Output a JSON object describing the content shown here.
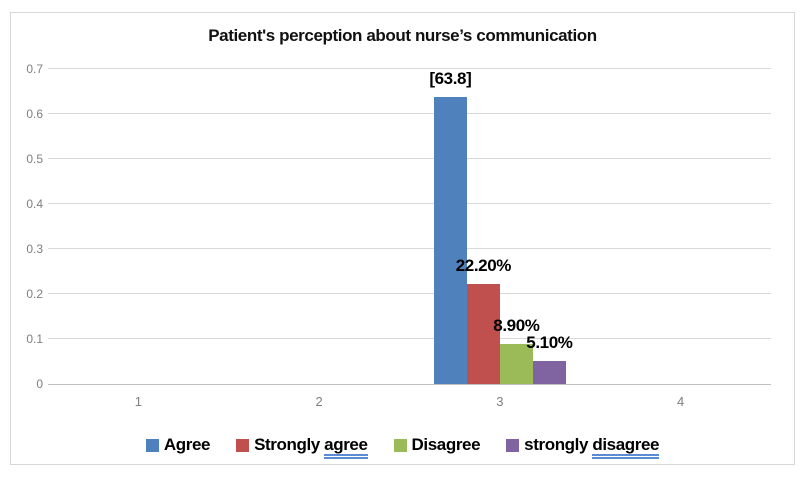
{
  "chart_data": {
    "type": "bar",
    "title": "Patient's perception about nurse’s communication",
    "categories": [
      "1",
      "2",
      "3",
      "4"
    ],
    "series": [
      {
        "name": "Agree",
        "color": "#4F81BD",
        "values": [
          null,
          null,
          0.638,
          null
        ],
        "data_label": "[63.8]"
      },
      {
        "name": "Strongly agree",
        "color": "#C0504D",
        "values": [
          null,
          null,
          0.222,
          null
        ],
        "data_label": "22.20%",
        "underlined_word": "agree"
      },
      {
        "name": "Disagree",
        "color": "#9BBB59",
        "values": [
          null,
          null,
          0.089,
          null
        ],
        "data_label": "8.90%"
      },
      {
        "name": "strongly disagree",
        "color": "#8064A2",
        "values": [
          null,
          null,
          0.051,
          null
        ],
        "data_label": "5.10%",
        "underlined_word": "disagree"
      }
    ],
    "ylim": [
      0,
      0.7
    ],
    "yticks": [
      "0",
      "0.1",
      "0.2",
      "0.3",
      "0.4",
      "0.5",
      "0.6",
      "0.7"
    ],
    "xlabel": "",
    "ylabel": "",
    "grid": true,
    "legend_position": "bottom",
    "colors": {
      "axis_text": "#7f7f7f",
      "gridline": "#d9d9d9",
      "axis_line": "#bfbfbf",
      "frame_border": "#d7d7d7",
      "data_label_text": "#000000",
      "grammar_underline": "#5b8bd5"
    }
  }
}
